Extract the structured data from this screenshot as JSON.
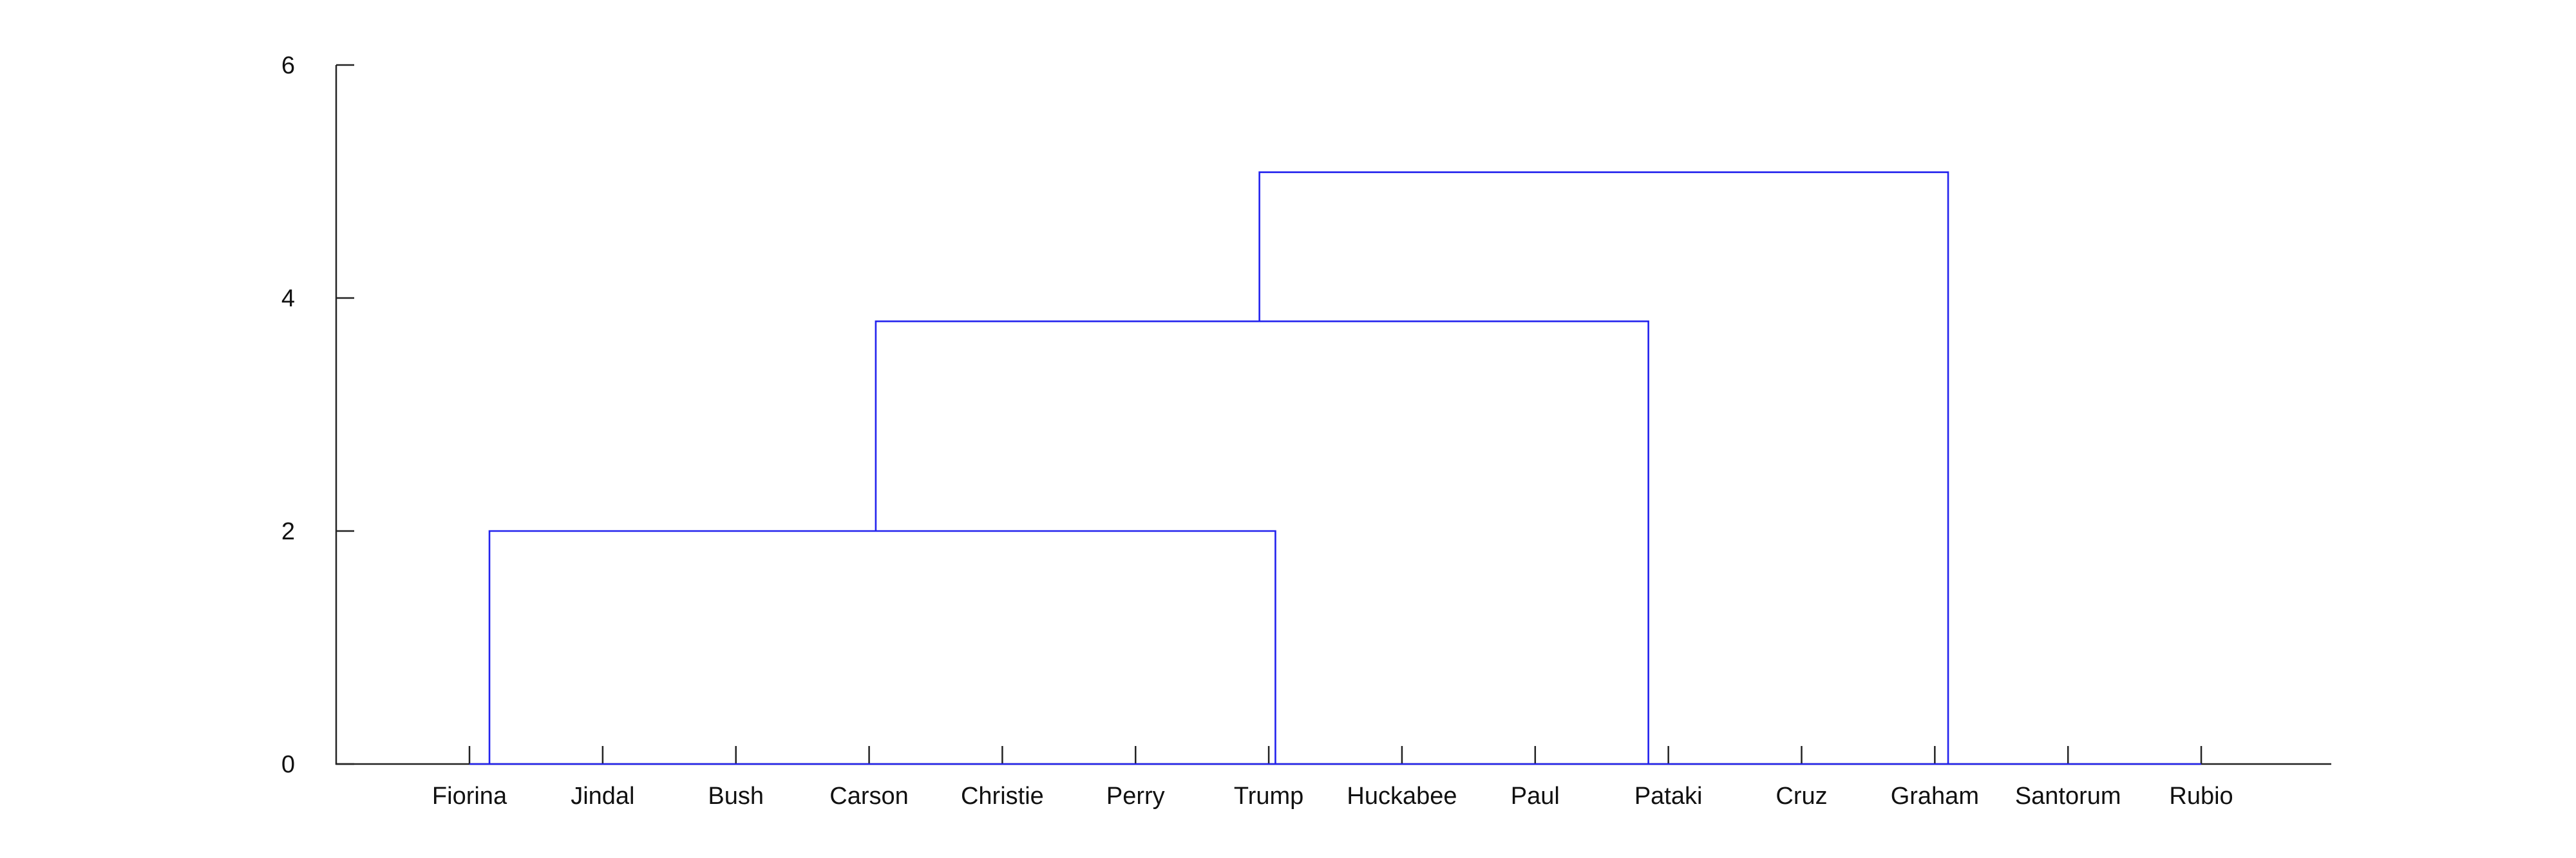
{
  "chart_data": {
    "type": "dendrogram",
    "title": "",
    "xlabel": "",
    "ylabel": "",
    "ylim": [
      0,
      6
    ],
    "yticks": [
      0,
      2,
      4,
      6
    ],
    "grid": false,
    "leaves": [
      "Fiorina",
      "Jindal",
      "Bush",
      "Carson",
      "Christie",
      "Perry",
      "Trump",
      "Huckabee",
      "Paul",
      "Pataki",
      "Cruz",
      "Graham",
      "Santorum",
      "Rubio"
    ],
    "merges": [
      {
        "left_from": 1.15,
        "right_from": 7.05,
        "height": 2.0
      },
      {
        "left_from": 4.05,
        "right_from": 9.85,
        "height": 3.8
      },
      {
        "left_from": 6.93,
        "right_from": 12.1,
        "height": 5.08
      }
    ]
  },
  "colors": {
    "link": "#2222ee",
    "axis": "#222222",
    "background": "#ffffff"
  }
}
